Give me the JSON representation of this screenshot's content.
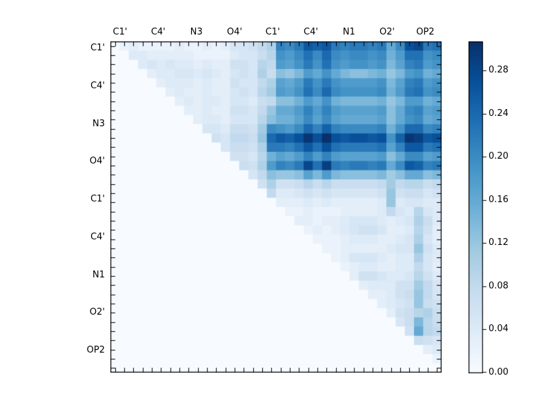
{
  "figure": {
    "title": "",
    "background": "#ffffff"
  },
  "chart_data": {
    "type": "heatmap",
    "title": "",
    "xlabel": "",
    "ylabel": "",
    "n": 36,
    "x_tick_labels": [
      "C1'",
      "C4'",
      "N3",
      "O4'",
      "C1'",
      "C4'",
      "N1",
      "O2'",
      "OP2"
    ],
    "y_tick_labels": [
      "C1'",
      "C4'",
      "N3",
      "O4'",
      "C1'",
      "C4'",
      "N1",
      "O2'",
      "OP2"
    ],
    "vmin": 0.0,
    "vmax": 0.307,
    "colormap_name": "Blues",
    "colormap_stops": [
      "#f7fbff",
      "#deebf7",
      "#c6dbef",
      "#9ecae1",
      "#6baed6",
      "#4292c6",
      "#2171b5",
      "#08519c",
      "#08306b"
    ],
    "colorbar": {
      "tick_values": [
        0.0,
        0.04,
        0.08,
        0.12,
        0.16,
        0.2,
        0.24,
        0.28
      ],
      "tick_labels": [
        "0.00",
        "0.04",
        "0.08",
        "0.12",
        "0.16",
        "0.20",
        "0.24",
        "0.28"
      ],
      "position": "right"
    },
    "grid": false,
    "legend": false,
    "matrix": [
      [
        0,
        0.02,
        0.03,
        0.02,
        0.02,
        0.02,
        0.02,
        0.03,
        0.02,
        0.02,
        0.03,
        0.02,
        0.03,
        0.05,
        0.05,
        0.06,
        0.08,
        0.1,
        0.21,
        0.2,
        0.22,
        0.26,
        0.25,
        0.26,
        0.22,
        0.21,
        0.22,
        0.22,
        0.21,
        0.22,
        0.16,
        0.2,
        0.27,
        0.28,
        0.22,
        0.23
      ],
      [
        0,
        0,
        0.04,
        0.04,
        0.03,
        0.03,
        0.03,
        0.03,
        0.03,
        0.02,
        0.02,
        0.02,
        0.02,
        0.04,
        0.05,
        0.05,
        0.07,
        0.09,
        0.19,
        0.18,
        0.2,
        0.23,
        0.2,
        0.24,
        0.2,
        0.19,
        0.2,
        0.2,
        0.19,
        0.2,
        0.15,
        0.18,
        0.23,
        0.23,
        0.19,
        0.2
      ],
      [
        0,
        0,
        0,
        0.04,
        0.05,
        0.04,
        0.05,
        0.04,
        0.04,
        0.03,
        0.04,
        0.03,
        0.03,
        0.06,
        0.06,
        0.05,
        0.09,
        0.08,
        0.18,
        0.17,
        0.19,
        0.22,
        0.19,
        0.23,
        0.19,
        0.18,
        0.19,
        0.19,
        0.18,
        0.19,
        0.14,
        0.17,
        0.21,
        0.22,
        0.18,
        0.19
      ],
      [
        0,
        0,
        0,
        0,
        0.03,
        0.04,
        0.04,
        0.05,
        0.05,
        0.04,
        0.05,
        0.04,
        0.03,
        0.05,
        0.06,
        0.05,
        0.1,
        0.07,
        0.13,
        0.12,
        0.14,
        0.18,
        0.16,
        0.19,
        0.16,
        0.14,
        0.13,
        0.13,
        0.14,
        0.15,
        0.12,
        0.14,
        0.18,
        0.19,
        0.15,
        0.16
      ],
      [
        0,
        0,
        0,
        0,
        0,
        0.03,
        0.04,
        0.04,
        0.04,
        0.03,
        0.04,
        0.03,
        0.03,
        0.06,
        0.05,
        0.05,
        0.08,
        0.1,
        0.17,
        0.16,
        0.18,
        0.22,
        0.19,
        0.22,
        0.19,
        0.18,
        0.18,
        0.18,
        0.18,
        0.19,
        0.14,
        0.17,
        0.21,
        0.22,
        0.18,
        0.19
      ],
      [
        0,
        0,
        0,
        0,
        0,
        0,
        0.03,
        0.04,
        0.03,
        0.03,
        0.04,
        0.03,
        0.03,
        0.05,
        0.06,
        0.05,
        0.09,
        0.11,
        0.18,
        0.17,
        0.19,
        0.23,
        0.2,
        0.24,
        0.2,
        0.19,
        0.19,
        0.19,
        0.19,
        0.2,
        0.15,
        0.18,
        0.22,
        0.23,
        0.19,
        0.2
      ],
      [
        0,
        0,
        0,
        0,
        0,
        0,
        0,
        0.03,
        0.04,
        0.03,
        0.04,
        0.04,
        0.03,
        0.05,
        0.05,
        0.04,
        0.07,
        0.08,
        0.13,
        0.13,
        0.15,
        0.18,
        0.16,
        0.19,
        0.15,
        0.14,
        0.14,
        0.14,
        0.14,
        0.15,
        0.12,
        0.14,
        0.18,
        0.18,
        0.15,
        0.16
      ],
      [
        0,
        0,
        0,
        0,
        0,
        0,
        0,
        0,
        0.03,
        0.03,
        0.04,
        0.03,
        0.03,
        0.06,
        0.06,
        0.05,
        0.08,
        0.12,
        0.16,
        0.16,
        0.18,
        0.21,
        0.18,
        0.21,
        0.18,
        0.17,
        0.17,
        0.17,
        0.17,
        0.18,
        0.13,
        0.16,
        0.2,
        0.21,
        0.17,
        0.18
      ],
      [
        0,
        0,
        0,
        0,
        0,
        0,
        0,
        0,
        0,
        0.03,
        0.04,
        0.04,
        0.03,
        0.05,
        0.05,
        0.05,
        0.09,
        0.13,
        0.15,
        0.15,
        0.17,
        0.2,
        0.17,
        0.2,
        0.17,
        0.16,
        0.16,
        0.16,
        0.16,
        0.17,
        0.13,
        0.16,
        0.19,
        0.2,
        0.16,
        0.17
      ],
      [
        0,
        0,
        0,
        0,
        0,
        0,
        0,
        0,
        0,
        0,
        0.05,
        0.05,
        0.04,
        0.07,
        0.07,
        0.06,
        0.11,
        0.2,
        0.19,
        0.18,
        0.2,
        0.24,
        0.21,
        0.25,
        0.21,
        0.2,
        0.2,
        0.2,
        0.2,
        0.21,
        0.15,
        0.19,
        0.24,
        0.24,
        0.2,
        0.21
      ],
      [
        0,
        0,
        0,
        0,
        0,
        0,
        0,
        0,
        0,
        0,
        0,
        0.06,
        0.05,
        0.08,
        0.08,
        0.07,
        0.12,
        0.24,
        0.26,
        0.25,
        0.27,
        0.3,
        0.27,
        0.31,
        0.27,
        0.26,
        0.27,
        0.27,
        0.26,
        0.27,
        0.19,
        0.25,
        0.3,
        0.29,
        0.26,
        0.27
      ],
      [
        0,
        0,
        0,
        0,
        0,
        0,
        0,
        0,
        0,
        0,
        0,
        0,
        0.05,
        0.07,
        0.07,
        0.06,
        0.1,
        0.22,
        0.22,
        0.21,
        0.23,
        0.26,
        0.23,
        0.27,
        0.23,
        0.22,
        0.22,
        0.22,
        0.22,
        0.23,
        0.17,
        0.21,
        0.26,
        0.26,
        0.22,
        0.23
      ],
      [
        0,
        0,
        0,
        0,
        0,
        0,
        0,
        0,
        0,
        0,
        0,
        0,
        0,
        0.06,
        0.06,
        0.05,
        0.09,
        0.15,
        0.17,
        0.16,
        0.18,
        0.21,
        0.18,
        0.21,
        0.18,
        0.17,
        0.17,
        0.17,
        0.17,
        0.18,
        0.13,
        0.16,
        0.2,
        0.2,
        0.17,
        0.18
      ],
      [
        0,
        0,
        0,
        0,
        0,
        0,
        0,
        0,
        0,
        0,
        0,
        0,
        0,
        0,
        0.07,
        0.06,
        0.1,
        0.18,
        0.21,
        0.2,
        0.22,
        0.28,
        0.23,
        0.29,
        0.22,
        0.21,
        0.22,
        0.22,
        0.21,
        0.22,
        0.16,
        0.2,
        0.26,
        0.25,
        0.21,
        0.22
      ],
      [
        0,
        0,
        0,
        0,
        0,
        0,
        0,
        0,
        0,
        0,
        0,
        0,
        0,
        0,
        0,
        0.05,
        0.08,
        0.13,
        0.12,
        0.12,
        0.13,
        0.17,
        0.14,
        0.18,
        0.14,
        0.13,
        0.13,
        0.13,
        0.13,
        0.14,
        0.11,
        0.13,
        0.16,
        0.16,
        0.13,
        0.14
      ],
      [
        0,
        0,
        0,
        0,
        0,
        0,
        0,
        0,
        0,
        0,
        0,
        0,
        0,
        0,
        0,
        0,
        0.06,
        0.1,
        0.06,
        0.06,
        0.07,
        0.09,
        0.07,
        0.09,
        0.07,
        0.07,
        0.07,
        0.07,
        0.07,
        0.08,
        0.11,
        0.08,
        0.09,
        0.09,
        0.07,
        0.08
      ],
      [
        0,
        0,
        0,
        0,
        0,
        0,
        0,
        0,
        0,
        0,
        0,
        0,
        0,
        0,
        0,
        0,
        0,
        0.08,
        0.04,
        0.04,
        0.05,
        0.06,
        0.05,
        0.06,
        0.05,
        0.05,
        0.05,
        0.05,
        0.05,
        0.06,
        0.12,
        0.06,
        0.07,
        0.07,
        0.05,
        0.06
      ],
      [
        0,
        0,
        0,
        0,
        0,
        0,
        0,
        0,
        0,
        0,
        0,
        0,
        0,
        0,
        0,
        0,
        0,
        0,
        0.03,
        0.03,
        0.03,
        0.04,
        0.03,
        0.04,
        0.03,
        0.03,
        0.03,
        0.03,
        0.03,
        0.04,
        0.12,
        0.04,
        0.05,
        0.05,
        0.04,
        0.04
      ],
      [
        0,
        0,
        0,
        0,
        0,
        0,
        0,
        0,
        0,
        0,
        0,
        0,
        0,
        0,
        0,
        0,
        0,
        0,
        0,
        0.02,
        0.02,
        0.03,
        0.02,
        0.02,
        0.02,
        0.03,
        0.03,
        0.03,
        0.03,
        0.04,
        0.08,
        0.05,
        0.04,
        0.09,
        0.05,
        0.04
      ],
      [
        0,
        0,
        0,
        0,
        0,
        0,
        0,
        0,
        0,
        0,
        0,
        0,
        0,
        0,
        0,
        0,
        0,
        0,
        0,
        0,
        0.03,
        0.03,
        0.02,
        0.03,
        0.03,
        0.04,
        0.05,
        0.05,
        0.05,
        0.04,
        0.03,
        0.04,
        0.05,
        0.1,
        0.07,
        0.04
      ],
      [
        0,
        0,
        0,
        0,
        0,
        0,
        0,
        0,
        0,
        0,
        0,
        0,
        0,
        0,
        0,
        0,
        0,
        0,
        0,
        0,
        0,
        0.02,
        0.03,
        0.02,
        0.03,
        0.04,
        0.05,
        0.06,
        0.06,
        0.05,
        0.03,
        0.03,
        0.04,
        0.09,
        0.06,
        0.03
      ],
      [
        0,
        0,
        0,
        0,
        0,
        0,
        0,
        0,
        0,
        0,
        0,
        0,
        0,
        0,
        0,
        0,
        0,
        0,
        0,
        0,
        0,
        0,
        0.02,
        0.02,
        0.02,
        0.03,
        0.04,
        0.04,
        0.04,
        0.03,
        0.03,
        0.04,
        0.05,
        0.1,
        0.05,
        0.03
      ],
      [
        0,
        0,
        0,
        0,
        0,
        0,
        0,
        0,
        0,
        0,
        0,
        0,
        0,
        0,
        0,
        0,
        0,
        0,
        0,
        0,
        0,
        0,
        0,
        0.02,
        0.02,
        0.03,
        0.03,
        0.03,
        0.03,
        0.03,
        0.04,
        0.05,
        0.05,
        0.12,
        0.06,
        0.04
      ],
      [
        0,
        0,
        0,
        0,
        0,
        0,
        0,
        0,
        0,
        0,
        0,
        0,
        0,
        0,
        0,
        0,
        0,
        0,
        0,
        0,
        0,
        0,
        0,
        0,
        0.02,
        0.03,
        0.05,
        0.05,
        0.05,
        0.04,
        0.03,
        0.04,
        0.04,
        0.1,
        0.05,
        0.04
      ],
      [
        0,
        0,
        0,
        0,
        0,
        0,
        0,
        0,
        0,
        0,
        0,
        0,
        0,
        0,
        0,
        0,
        0,
        0,
        0,
        0,
        0,
        0,
        0,
        0,
        0,
        0.02,
        0.03,
        0.04,
        0.04,
        0.03,
        0.03,
        0.04,
        0.04,
        0.08,
        0.05,
        0.03
      ],
      [
        0,
        0,
        0,
        0,
        0,
        0,
        0,
        0,
        0,
        0,
        0,
        0,
        0,
        0,
        0,
        0,
        0,
        0,
        0,
        0,
        0,
        0,
        0,
        0,
        0,
        0,
        0.03,
        0.06,
        0.06,
        0.05,
        0.04,
        0.04,
        0.05,
        0.09,
        0.06,
        0.04
      ],
      [
        0,
        0,
        0,
        0,
        0,
        0,
        0,
        0,
        0,
        0,
        0,
        0,
        0,
        0,
        0,
        0,
        0,
        0,
        0,
        0,
        0,
        0,
        0,
        0,
        0,
        0,
        0,
        0.03,
        0.04,
        0.04,
        0.04,
        0.06,
        0.06,
        0.11,
        0.08,
        0.05
      ],
      [
        0,
        0,
        0,
        0,
        0,
        0,
        0,
        0,
        0,
        0,
        0,
        0,
        0,
        0,
        0,
        0,
        0,
        0,
        0,
        0,
        0,
        0,
        0,
        0,
        0,
        0,
        0,
        0,
        0.03,
        0.03,
        0.04,
        0.06,
        0.07,
        0.12,
        0.08,
        0.05
      ],
      [
        0,
        0,
        0,
        0,
        0,
        0,
        0,
        0,
        0,
        0,
        0,
        0,
        0,
        0,
        0,
        0,
        0,
        0,
        0,
        0,
        0,
        0,
        0,
        0,
        0,
        0,
        0,
        0,
        0,
        0.03,
        0.04,
        0.05,
        0.06,
        0.12,
        0.07,
        0.06
      ],
      [
        0,
        0,
        0,
        0,
        0,
        0,
        0,
        0,
        0,
        0,
        0,
        0,
        0,
        0,
        0,
        0,
        0,
        0,
        0,
        0,
        0,
        0,
        0,
        0,
        0,
        0,
        0,
        0,
        0,
        0,
        0.03,
        0.06,
        0.07,
        0.09,
        0.1,
        0.07
      ],
      [
        0,
        0,
        0,
        0,
        0,
        0,
        0,
        0,
        0,
        0,
        0,
        0,
        0,
        0,
        0,
        0,
        0,
        0,
        0,
        0,
        0,
        0,
        0,
        0,
        0,
        0,
        0,
        0,
        0,
        0,
        0,
        0.05,
        0.07,
        0.14,
        0.09,
        0.07
      ],
      [
        0,
        0,
        0,
        0,
        0,
        0,
        0,
        0,
        0,
        0,
        0,
        0,
        0,
        0,
        0,
        0,
        0,
        0,
        0,
        0,
        0,
        0,
        0,
        0,
        0,
        0,
        0,
        0,
        0,
        0,
        0,
        0,
        0.06,
        0.16,
        0.09,
        0.08
      ],
      [
        0,
        0,
        0,
        0,
        0,
        0,
        0,
        0,
        0,
        0,
        0,
        0,
        0,
        0,
        0,
        0,
        0,
        0,
        0,
        0,
        0,
        0,
        0,
        0,
        0,
        0,
        0,
        0,
        0,
        0,
        0,
        0,
        0,
        0.07,
        0.06,
        0.05
      ],
      [
        0,
        0,
        0,
        0,
        0,
        0,
        0,
        0,
        0,
        0,
        0,
        0,
        0,
        0,
        0,
        0,
        0,
        0,
        0,
        0,
        0,
        0,
        0,
        0,
        0,
        0,
        0,
        0,
        0,
        0,
        0,
        0,
        0,
        0,
        0.03,
        0.04
      ],
      [
        0,
        0,
        0,
        0,
        0,
        0,
        0,
        0,
        0,
        0,
        0,
        0,
        0,
        0,
        0,
        0,
        0,
        0,
        0,
        0,
        0,
        0,
        0,
        0,
        0,
        0,
        0,
        0,
        0,
        0,
        0,
        0,
        0,
        0,
        0,
        0.02
      ],
      [
        0,
        0,
        0,
        0,
        0,
        0,
        0,
        0,
        0,
        0,
        0,
        0,
        0,
        0,
        0,
        0,
        0,
        0,
        0,
        0,
        0,
        0,
        0,
        0,
        0,
        0,
        0,
        0,
        0,
        0,
        0,
        0,
        0,
        0,
        0,
        0
      ]
    ]
  }
}
